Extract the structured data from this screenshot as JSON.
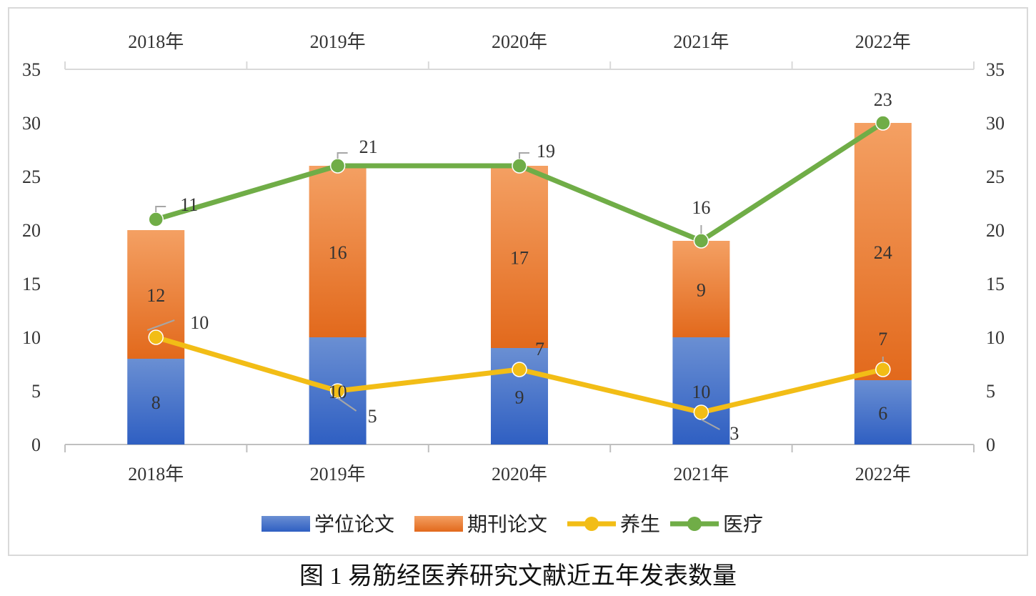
{
  "caption": "图 1 易筋经医养研究文献近五年发表数量",
  "chart_data": {
    "type": "bar",
    "stacked": true,
    "categories": [
      "2018年",
      "2019年",
      "2020年",
      "2021年",
      "2022年"
    ],
    "ylim": [
      0,
      35
    ],
    "y_ticks": [
      0,
      5,
      10,
      15,
      20,
      25,
      30,
      35
    ],
    "secondary_ylim": [
      0,
      35
    ],
    "grid": false,
    "legend_position": "bottom",
    "bar_series": [
      {
        "name": "学位论文",
        "values": [
          8,
          10,
          9,
          10,
          6
        ],
        "color": "#4472c4"
      },
      {
        "name": "期刊论文",
        "values": [
          12,
          16,
          17,
          9,
          24
        ],
        "color": "#ed7d31"
      }
    ],
    "line_series": [
      {
        "name": "养生",
        "values": [
          10,
          5,
          7,
          3,
          7
        ],
        "labels": [
          "10",
          "5",
          "7",
          "3",
          "7"
        ],
        "color": "#f2bd16",
        "axis": "secondary"
      },
      {
        "name": "医疗",
        "values": [
          21,
          26,
          26,
          19,
          30
        ],
        "labels": [
          "11",
          "21",
          "19",
          "16",
          "23"
        ],
        "color": "#70ad47",
        "axis": "secondary"
      }
    ]
  }
}
